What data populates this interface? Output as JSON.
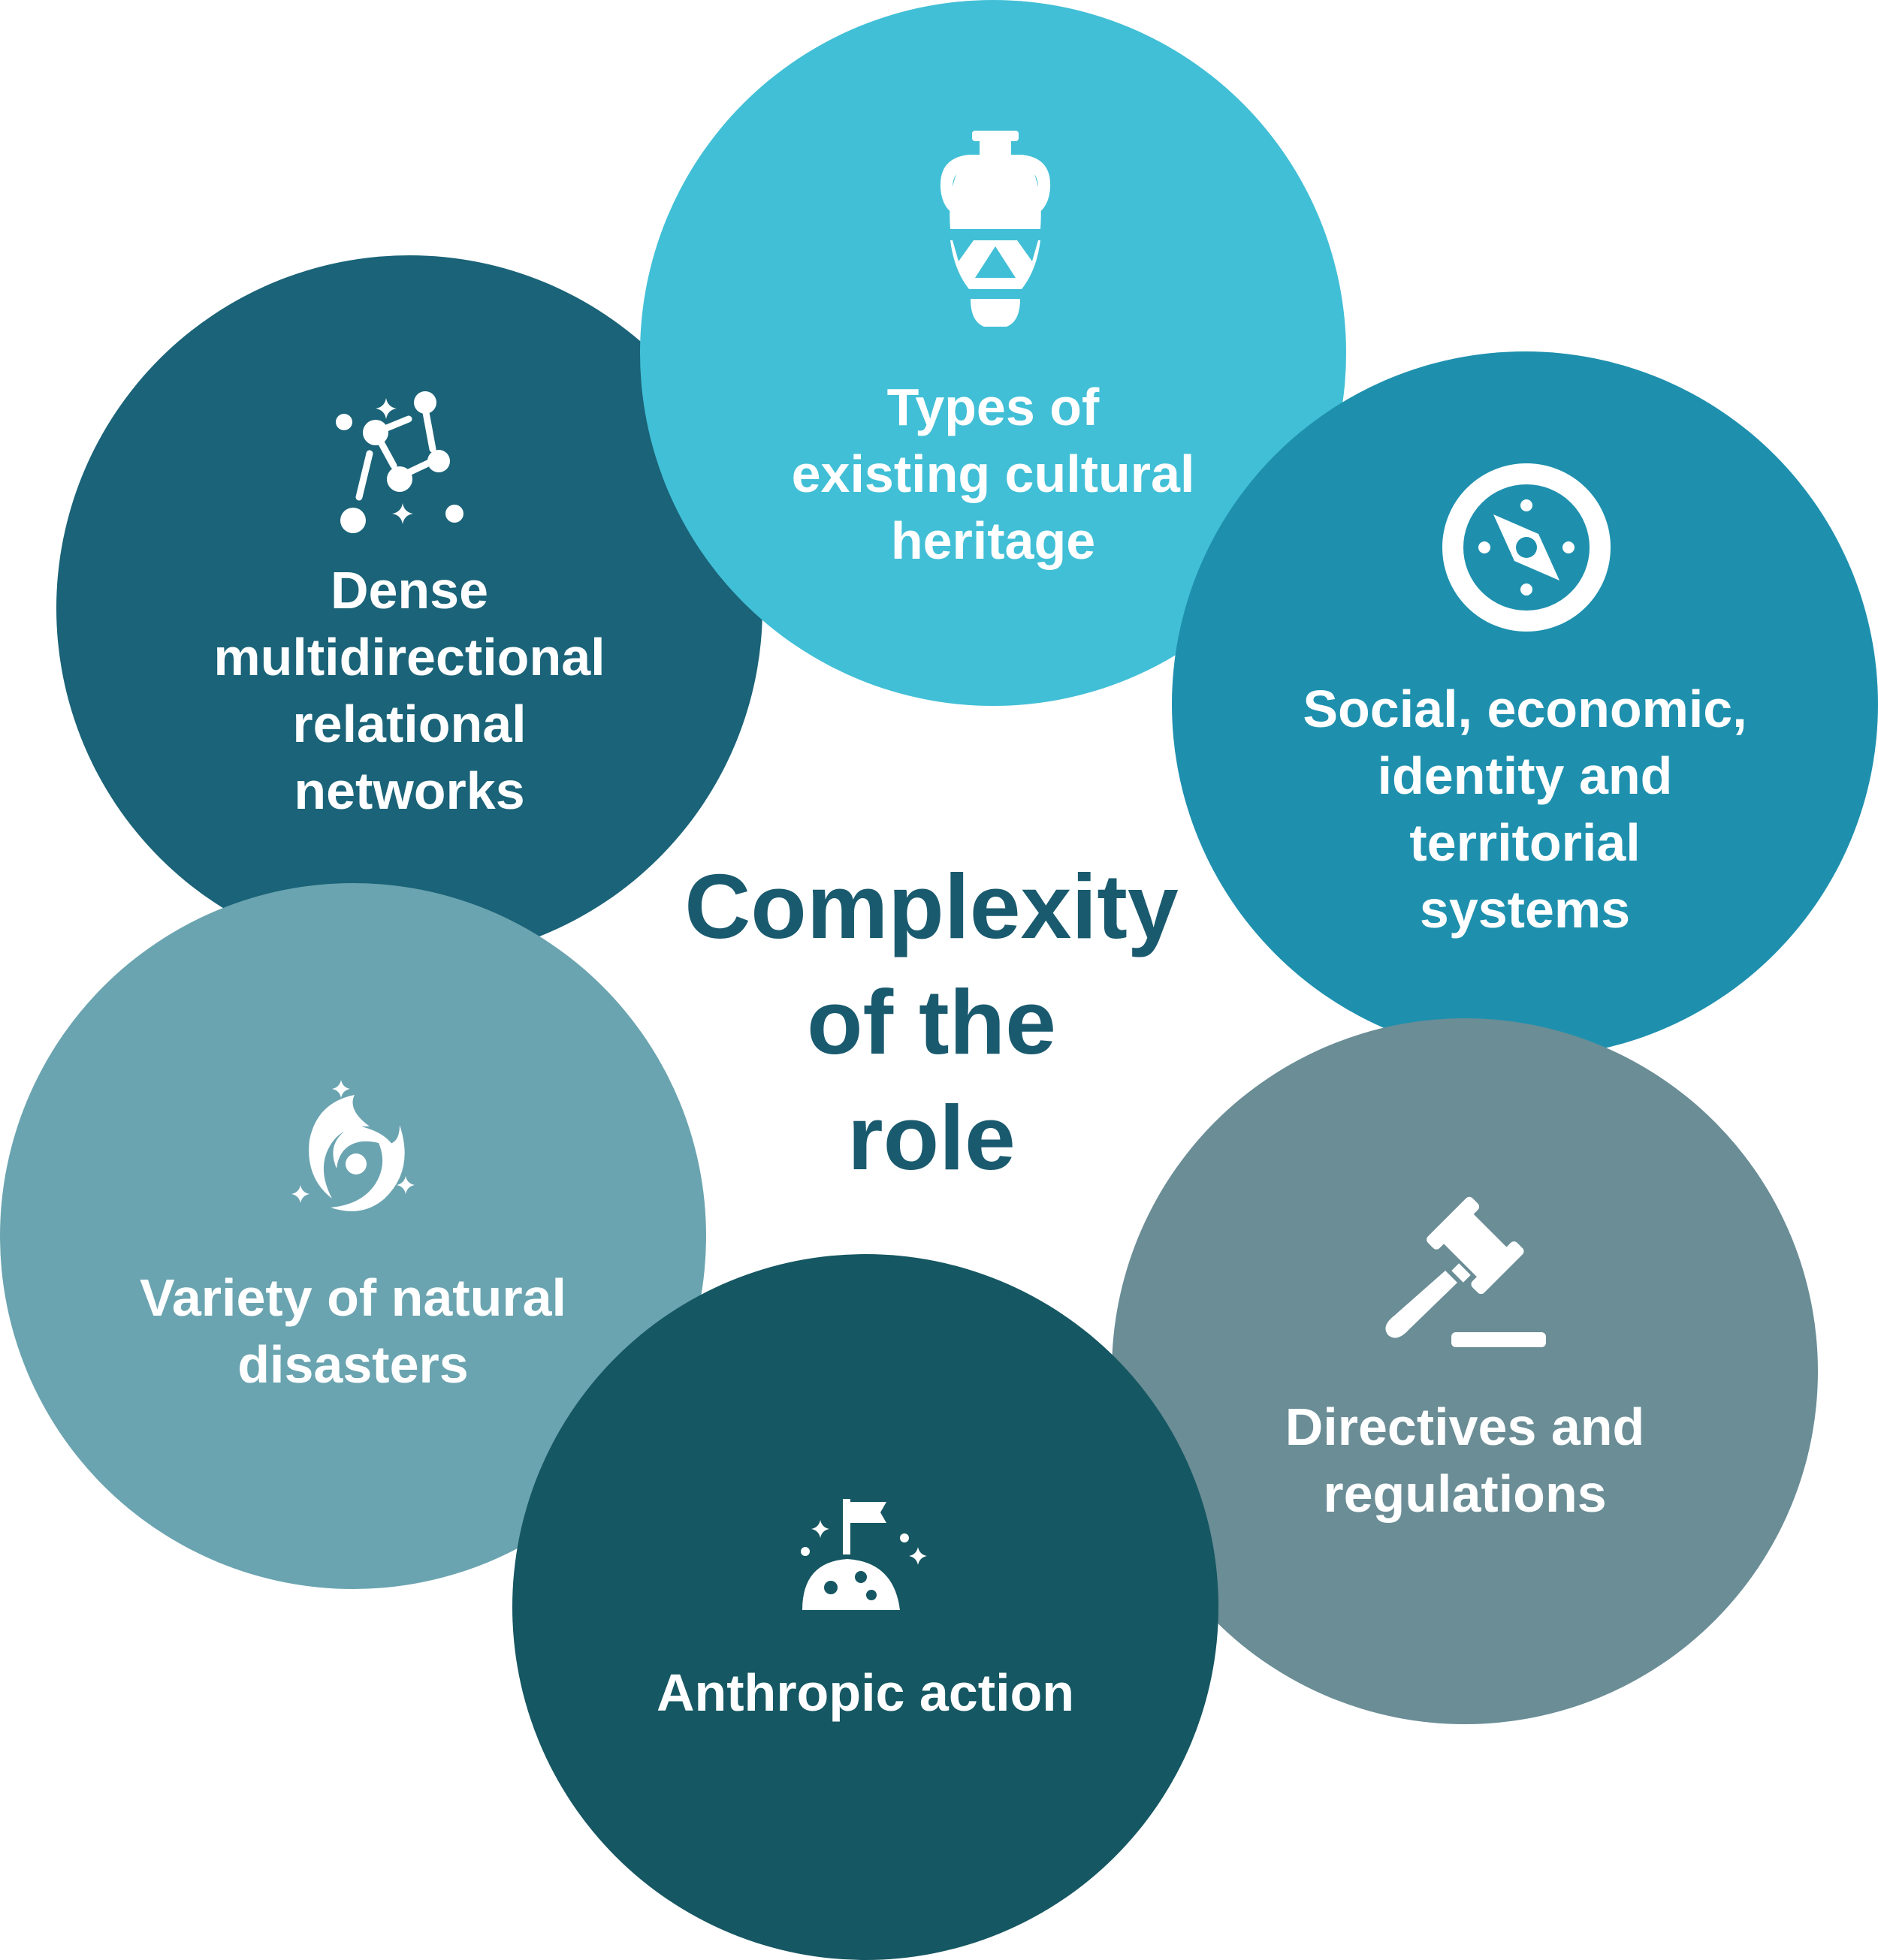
{
  "center": {
    "line1": "Complexity",
    "line2": "of the",
    "line3": "role"
  },
  "nodes": {
    "types": {
      "icon": "amphora-icon",
      "color": "#41bfd6",
      "lines": [
        "Types of",
        "existing cultural",
        "heritage"
      ]
    },
    "dense": {
      "icon": "constellation-icon",
      "color": "#1a6378",
      "lines": [
        "Dense",
        "multidirectional",
        "relational",
        "networks"
      ]
    },
    "social": {
      "icon": "compass-icon",
      "color": "#1e90ae",
      "lines": [
        "Social, economic,",
        "identity and",
        "territorial",
        "systems"
      ]
    },
    "natural": {
      "icon": "hurricane-icon",
      "color": "#6aa4b0",
      "lines": [
        "Variety of natural",
        "disasters"
      ]
    },
    "directives": {
      "icon": "gavel-icon",
      "color": "#6a8d96",
      "lines": [
        "Directives and",
        "regulations"
      ]
    },
    "anthropic": {
      "icon": "moon-flag-icon",
      "color": "#155762",
      "lines": [
        "Anthropic action"
      ]
    }
  }
}
